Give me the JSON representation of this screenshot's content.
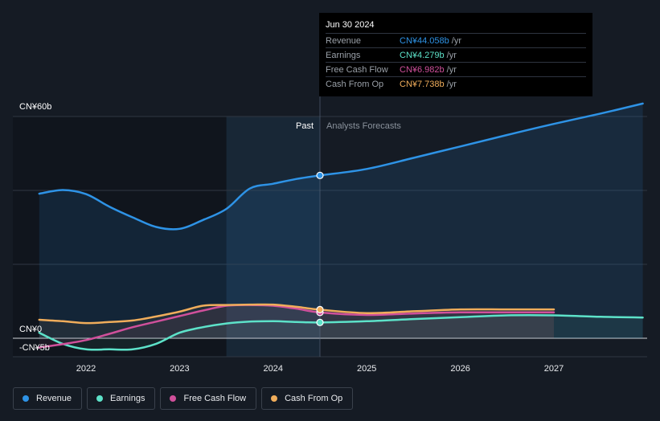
{
  "tooltip": {
    "date": "Jun 30 2024",
    "rows": [
      {
        "label": "Revenue",
        "value": "CN¥44.058b",
        "unit": "/yr",
        "color": "#2e93e6"
      },
      {
        "label": "Earnings",
        "value": "CN¥4.279b",
        "unit": "/yr",
        "color": "#5de2c9"
      },
      {
        "label": "Free Cash Flow",
        "value": "CN¥6.982b",
        "unit": "/yr",
        "color": "#d0509b"
      },
      {
        "label": "Cash From Op",
        "value": "CN¥7.738b",
        "unit": "/yr",
        "color": "#f0ad5b"
      }
    ]
  },
  "legend": [
    {
      "label": "Revenue",
      "color": "#2e93e6"
    },
    {
      "label": "Earnings",
      "color": "#5de2c9"
    },
    {
      "label": "Free Cash Flow",
      "color": "#d0509b"
    },
    {
      "label": "Cash From Op",
      "color": "#f0ad5b"
    }
  ],
  "chart_data": {
    "type": "line",
    "ylim": [
      -5,
      60
    ],
    "xlim": [
      2021.5,
      2027.95
    ],
    "y_tick_labels": [
      {
        "value": 60,
        "label": "CN¥60b"
      },
      {
        "value": 0,
        "label": "CN¥0"
      },
      {
        "value": -5,
        "label": "-CN¥5b"
      }
    ],
    "gridlines": [
      60,
      40,
      20,
      0
    ],
    "x_ticks": [
      {
        "value": 2022,
        "label": "2022"
      },
      {
        "value": 2023,
        "label": "2023"
      },
      {
        "value": 2024,
        "label": "2024"
      },
      {
        "value": 2025,
        "label": "2025"
      },
      {
        "value": 2026,
        "label": "2026"
      },
      {
        "value": 2027,
        "label": "2027"
      }
    ],
    "divider_x": 2024.5,
    "past_shade_start": 2023.5,
    "past_label": "Past",
    "forecast_label": "Analysts Forecasts",
    "series": [
      {
        "name": "Revenue",
        "color": "#2e93e6",
        "fill": true,
        "points": [
          [
            2021.5,
            39.1
          ],
          [
            2021.75,
            40.1
          ],
          [
            2022.0,
            39.0
          ],
          [
            2022.25,
            35.6
          ],
          [
            2022.5,
            32.7
          ],
          [
            2022.75,
            30.1
          ],
          [
            2023.0,
            29.6
          ],
          [
            2023.25,
            32.0
          ],
          [
            2023.5,
            35.0
          ],
          [
            2023.75,
            40.5
          ],
          [
            2024.0,
            41.8
          ],
          [
            2024.25,
            43.1
          ],
          [
            2024.5,
            44.058
          ],
          [
            2025.0,
            45.8
          ],
          [
            2025.5,
            48.8
          ],
          [
            2026.0,
            51.9
          ],
          [
            2026.5,
            55.0
          ],
          [
            2027.0,
            58.0
          ],
          [
            2027.5,
            60.8
          ],
          [
            2027.95,
            63.5
          ]
        ]
      },
      {
        "name": "Earnings",
        "color": "#5de2c9",
        "fill": true,
        "points": [
          [
            2021.5,
            1.5
          ],
          [
            2021.75,
            -1.5
          ],
          [
            2022.0,
            -3.0
          ],
          [
            2022.25,
            -3.0
          ],
          [
            2022.5,
            -3.0
          ],
          [
            2022.75,
            -1.5
          ],
          [
            2023.0,
            1.5
          ],
          [
            2023.25,
            3.0
          ],
          [
            2023.5,
            4.0
          ],
          [
            2023.75,
            4.5
          ],
          [
            2024.0,
            4.6
          ],
          [
            2024.25,
            4.4
          ],
          [
            2024.5,
            4.279
          ],
          [
            2025.0,
            4.6
          ],
          [
            2025.5,
            5.2
          ],
          [
            2026.0,
            5.7
          ],
          [
            2026.5,
            6.2
          ],
          [
            2027.0,
            6.2
          ],
          [
            2027.5,
            5.8
          ],
          [
            2027.95,
            5.6
          ]
        ]
      },
      {
        "name": "Free Cash Flow",
        "color": "#d0509b",
        "fill": true,
        "points": [
          [
            2021.5,
            -2.5
          ],
          [
            2021.75,
            -1.6
          ],
          [
            2022.0,
            -0.5
          ],
          [
            2022.25,
            1.2
          ],
          [
            2022.5,
            3.0
          ],
          [
            2022.75,
            4.5
          ],
          [
            2023.0,
            6.0
          ],
          [
            2023.25,
            7.5
          ],
          [
            2023.5,
            8.8
          ],
          [
            2023.75,
            9.0
          ],
          [
            2024.0,
            8.8
          ],
          [
            2024.25,
            8.0
          ],
          [
            2024.5,
            6.982
          ],
          [
            2025.0,
            6.3
          ],
          [
            2025.5,
            6.7
          ],
          [
            2026.0,
            7.0
          ],
          [
            2026.5,
            7.0
          ],
          [
            2027.0,
            7.0
          ]
        ]
      },
      {
        "name": "Cash From Op",
        "color": "#f0ad5b",
        "fill": true,
        "points": [
          [
            2021.5,
            5.0
          ],
          [
            2021.75,
            4.6
          ],
          [
            2022.0,
            4.1
          ],
          [
            2022.25,
            4.4
          ],
          [
            2022.5,
            4.8
          ],
          [
            2022.75,
            5.9
          ],
          [
            2023.0,
            7.2
          ],
          [
            2023.25,
            8.8
          ],
          [
            2023.5,
            9.0
          ],
          [
            2023.75,
            9.1
          ],
          [
            2024.0,
            9.1
          ],
          [
            2024.25,
            8.5
          ],
          [
            2024.5,
            7.738
          ],
          [
            2025.0,
            6.8
          ],
          [
            2025.5,
            7.3
          ],
          [
            2026.0,
            7.8
          ],
          [
            2026.5,
            7.8
          ],
          [
            2027.0,
            7.8
          ]
        ]
      }
    ],
    "highlight_x": 2024.5
  }
}
